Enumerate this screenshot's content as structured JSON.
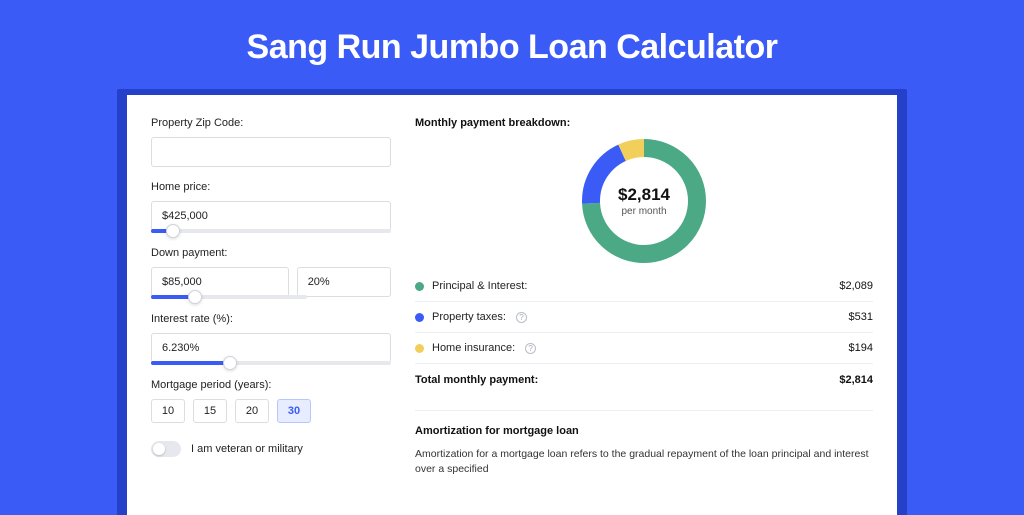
{
  "page": {
    "title": "Sang Run Jumbo Loan Calculator",
    "background_color": "#3b5bf7",
    "shadow_color": "#2641c9",
    "panel_bg": "#ffffff"
  },
  "form": {
    "zip": {
      "label": "Property Zip Code:",
      "value": ""
    },
    "home_price": {
      "label": "Home price:",
      "value": "$425,000",
      "slider_pct": 9
    },
    "down_payment": {
      "label": "Down payment:",
      "amount": "$85,000",
      "percent": "20%",
      "slider_pct": 28
    },
    "interest_rate": {
      "label": "Interest rate (%):",
      "value": "6.230%",
      "slider_pct": 33
    },
    "mortgage_period": {
      "label": "Mortgage period (years):",
      "options": [
        "10",
        "15",
        "20",
        "30"
      ],
      "active": "30"
    },
    "veteran": {
      "label": "I am veteran or military",
      "on": false
    }
  },
  "breakdown": {
    "title": "Monthly payment breakdown:",
    "center_amount": "$2,814",
    "center_sub": "per month",
    "donut": {
      "size": 124,
      "thickness": 18,
      "slices": [
        {
          "key": "principal_interest",
          "value": 2089,
          "color": "#4ba986"
        },
        {
          "key": "property_taxes",
          "value": 531,
          "color": "#3b5bf7"
        },
        {
          "key": "home_insurance",
          "value": 194,
          "color": "#f2cf5b"
        }
      ]
    },
    "rows": [
      {
        "label": "Principal & Interest:",
        "value": "$2,089",
        "color": "#4ba986",
        "info": false
      },
      {
        "label": "Property taxes:",
        "value": "$531",
        "color": "#3b5bf7",
        "info": true
      },
      {
        "label": "Home insurance:",
        "value": "$194",
        "color": "#f2cf5b",
        "info": true
      }
    ],
    "total_label": "Total monthly payment:",
    "total_value": "$2,814"
  },
  "amortization": {
    "title": "Amortization for mortgage loan",
    "text": "Amortization for a mortgage loan refers to the gradual repayment of the loan principal and interest over a specified"
  }
}
